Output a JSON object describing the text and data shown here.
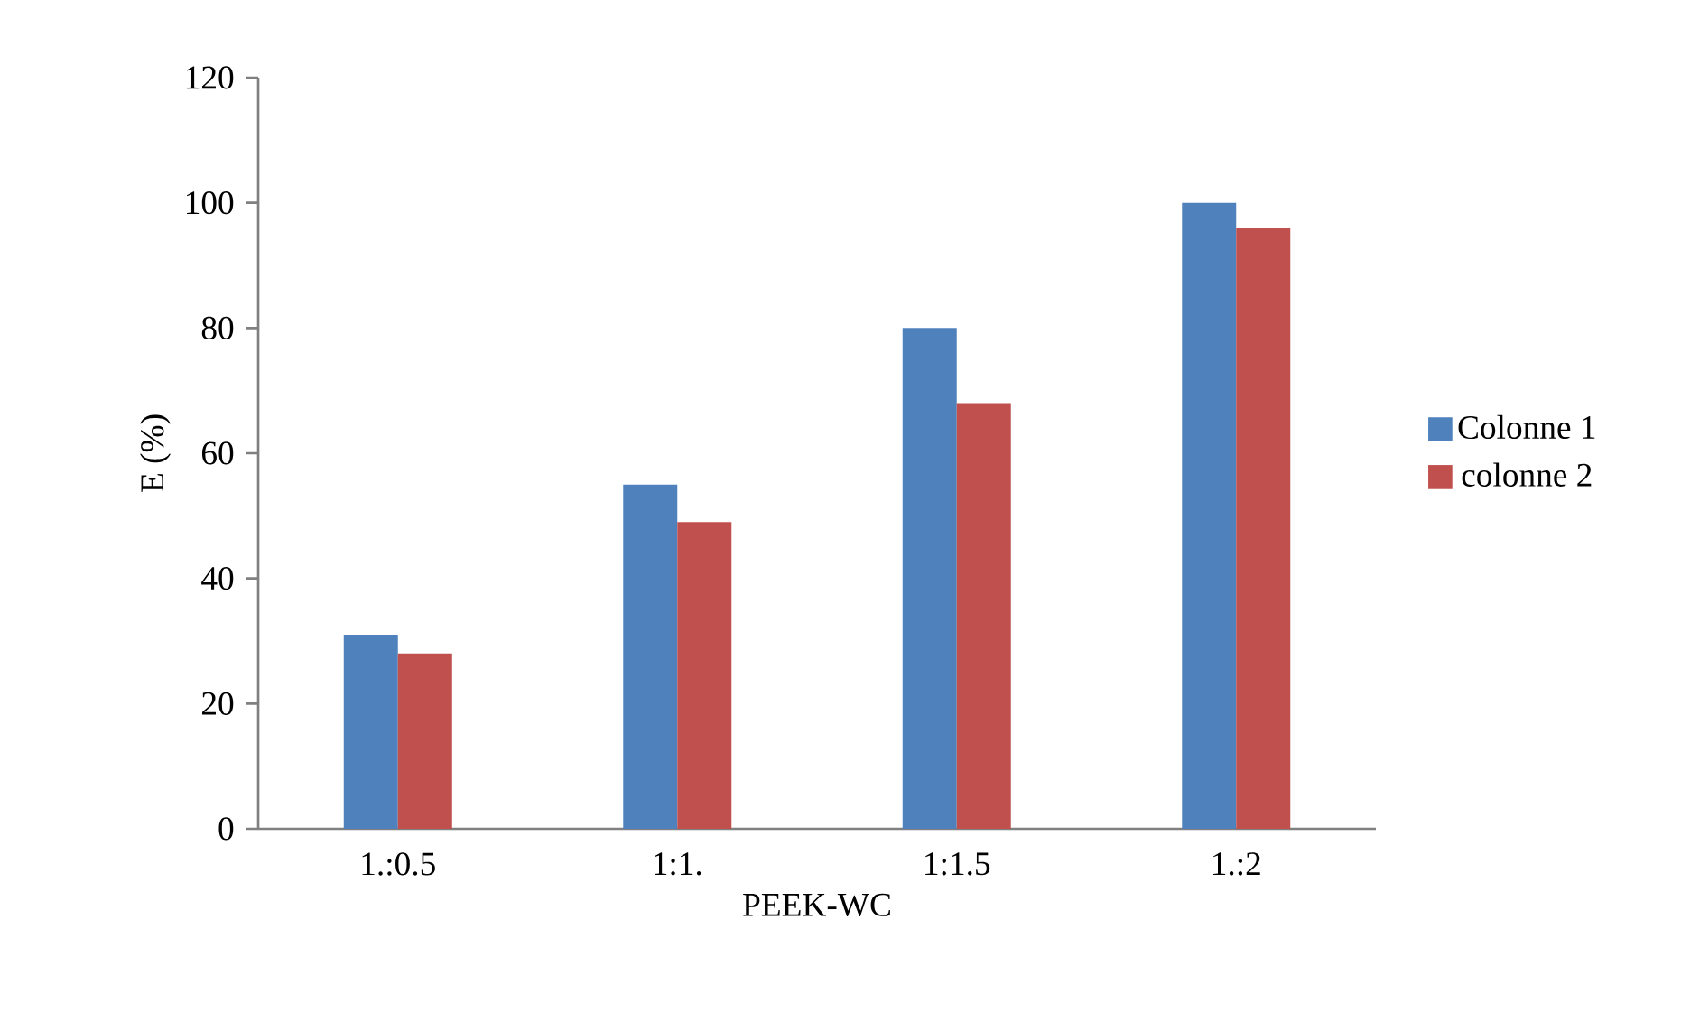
{
  "chart_data": {
    "type": "bar",
    "xlabel": "PEEK-WC",
    "ylabel": "E (%)",
    "categories": [
      "1.:0.5",
      "1:1.",
      "1:1.5",
      "1.:2"
    ],
    "series": [
      {
        "name": "Colonne 1",
        "color": "#4f81bd",
        "values": [
          31,
          55,
          80,
          100
        ]
      },
      {
        "name": "colonne 2",
        "color": "#c0504d",
        "values": [
          28,
          49,
          68,
          96
        ]
      }
    ],
    "ylim": [
      0,
      120
    ],
    "yticks": [
      0,
      20,
      40,
      60,
      80,
      100,
      120
    ],
    "grid": false,
    "legend": "right"
  }
}
